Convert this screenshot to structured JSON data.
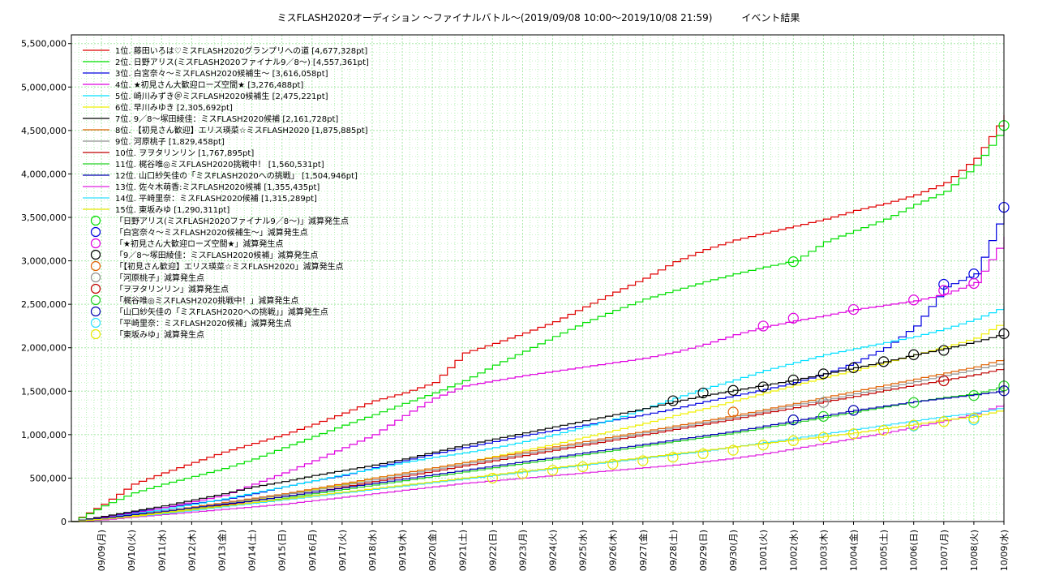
{
  "chart_data": {
    "type": "line",
    "title": "ミスFLASH2020オーディション 〜ファイナルバトル〜(2019/09/08 10:00〜2019/10/08 21:59)　　　イベント結果",
    "xlabel": "",
    "ylabel": "",
    "ylim": [
      0,
      5600000
    ],
    "yticks": [
      0,
      500000,
      1000000,
      1500000,
      2000000,
      2500000,
      3000000,
      3500000,
      4000000,
      4500000,
      5000000,
      5500000
    ],
    "ytick_labels": [
      "0",
      "500,000",
      "1,000,000",
      "1,500,000",
      "2,000,000",
      "2,500,000",
      "3,000,000",
      "3,500,000",
      "4,000,000",
      "4,500,000",
      "5,000,000",
      "5,500,000"
    ],
    "x": [
      "09/08",
      "09/09",
      "09/10",
      "09/11",
      "09/12",
      "09/13",
      "09/14",
      "09/15",
      "09/16",
      "09/17",
      "09/18",
      "09/19",
      "09/20",
      "09/21",
      "09/22",
      "09/23",
      "09/24",
      "09/25",
      "09/26",
      "09/27",
      "09/28",
      "09/29",
      "09/30",
      "10/01",
      "10/02",
      "10/03",
      "10/04",
      "10/05",
      "10/06",
      "10/07",
      "10/08",
      "10/09"
    ],
    "xtick_labels": [
      "09/09(月)",
      "09/10(火)",
      "09/11(水)",
      "09/12(木)",
      "09/13(金)",
      "09/14(土)",
      "09/15(日)",
      "09/16(月)",
      "09/17(火)",
      "09/18(水)",
      "09/19(木)",
      "09/20(金)",
      "09/21(土)",
      "09/22(日)",
      "09/23(月)",
      "09/24(火)",
      "09/25(水)",
      "09/26(木)",
      "09/27(金)",
      "09/28(土)",
      "09/29(日)",
      "09/30(月)",
      "10/01(火)",
      "10/02(水)",
      "10/03(木)",
      "10/04(金)",
      "10/05(土)",
      "10/06(日)",
      "10/07(月)",
      "10/08(火)",
      "10/09(水)"
    ],
    "grid": true,
    "legend_position": "top-left",
    "series": [
      {
        "name": "1位. 藤田いろは♡ミスFLASH2020グランプリへの道 [4,677,328pt]",
        "color": "#e00000",
        "values": [
          0,
          200000,
          430000,
          560000,
          680000,
          800000,
          900000,
          1000000,
          1120000,
          1250000,
          1390000,
          1480000,
          1600000,
          1940000,
          2050000,
          2170000,
          2300000,
          2470000,
          2640000,
          2800000,
          2990000,
          3130000,
          3240000,
          3320000,
          3400000,
          3480000,
          3580000,
          3660000,
          3760000,
          3900000,
          4180000,
          4677328
        ]
      },
      {
        "name": "2位. 日野アリス(ミスFLASH2020ファイナル9／8〜) [4,557,361pt]",
        "color": "#00e000",
        "values": [
          0,
          180000,
          330000,
          430000,
          520000,
          610000,
          720000,
          850000,
          980000,
          1110000,
          1230000,
          1360000,
          1480000,
          1620000,
          1800000,
          1960000,
          2130000,
          2290000,
          2430000,
          2560000,
          2660000,
          2760000,
          2850000,
          2930000,
          3000000,
          3220000,
          3350000,
          3480000,
          3650000,
          3800000,
          4100000,
          4557361
        ]
      },
      {
        "name": "3位. 白宮奈々〜ミスFLASH2020候補生〜 [3,616,058pt]",
        "color": "#0000e0",
        "values": [
          0,
          60000,
          110000,
          160000,
          210000,
          250000,
          320000,
          400000,
          470000,
          530000,
          620000,
          700000,
          780000,
          850000,
          920000,
          990000,
          1050000,
          1110000,
          1170000,
          1230000,
          1300000,
          1380000,
          1450000,
          1520000,
          1600000,
          1700000,
          1830000,
          2000000,
          2250000,
          2700000,
          2850000,
          3616058
        ]
      },
      {
        "name": "4位. ★初見さん大歓迎ローズ空間★ [3,276,488pt]",
        "color": "#e000e0",
        "values": [
          0,
          50000,
          100000,
          160000,
          230000,
          300000,
          430000,
          560000,
          700000,
          850000,
          1000000,
          1220000,
          1420000,
          1560000,
          1620000,
          1680000,
          1730000,
          1780000,
          1830000,
          1880000,
          1950000,
          2040000,
          2150000,
          2240000,
          2310000,
          2370000,
          2440000,
          2490000,
          2540000,
          2620000,
          2750000,
          3276488
        ]
      },
      {
        "name": "5位. 崎川みずき＠ミスFLASH2020候補生 [2,475,221pt]",
        "color": "#00e0ff",
        "values": [
          0,
          40000,
          90000,
          140000,
          200000,
          260000,
          330000,
          400000,
          470000,
          540000,
          610000,
          680000,
          740000,
          790000,
          850000,
          920000,
          1000000,
          1090000,
          1180000,
          1300000,
          1420000,
          1530000,
          1630000,
          1740000,
          1830000,
          1920000,
          1990000,
          2060000,
          2130000,
          2220000,
          2330000,
          2475221
        ]
      },
      {
        "name": "6位. 早川みゆき [2,305,692pt]",
        "color": "#f0f000",
        "values": [
          0,
          30000,
          70000,
          110000,
          150000,
          200000,
          250000,
          310000,
          370000,
          430000,
          500000,
          560000,
          620000,
          680000,
          750000,
          820000,
          890000,
          970000,
          1050000,
          1130000,
          1220000,
          1300000,
          1390000,
          1480000,
          1570000,
          1660000,
          1740000,
          1830000,
          1920000,
          2010000,
          2110000,
          2305692
        ]
      },
      {
        "name": "7位. 9／8〜塚田綾佳：ミスFLASH2020候補 [2,161,728pt]",
        "color": "#000000",
        "values": [
          0,
          60000,
          120000,
          180000,
          250000,
          320000,
          400000,
          460000,
          530000,
          590000,
          650000,
          720000,
          800000,
          880000,
          950000,
          1020000,
          1090000,
          1160000,
          1230000,
          1300000,
          1380000,
          1450000,
          1510000,
          1570000,
          1630000,
          1700000,
          1770000,
          1840000,
          1920000,
          1990000,
          2070000,
          2161728
        ]
      },
      {
        "name": "8位. 【初見さん歓迎】エリス瑛菜☆ミスFLASH2020 [1,875,885pt]",
        "color": "#e06000",
        "values": [
          0,
          40000,
          80000,
          120000,
          170000,
          220000,
          270000,
          320000,
          380000,
          440000,
          500000,
          560000,
          620000,
          680000,
          740000,
          800000,
          860000,
          920000,
          980000,
          1040000,
          1100000,
          1160000,
          1220000,
          1290000,
          1360000,
          1430000,
          1500000,
          1570000,
          1640000,
          1710000,
          1780000,
          1875885
        ]
      },
      {
        "name": "9位. 河原桃子 [1,829,458pt]",
        "color": "#909090",
        "values": [
          0,
          40000,
          80000,
          120000,
          160000,
          210000,
          260000,
          310000,
          360000,
          420000,
          480000,
          540000,
          600000,
          660000,
          720000,
          780000,
          840000,
          900000,
          960000,
          1020000,
          1080000,
          1140000,
          1200000,
          1270000,
          1340000,
          1400000,
          1470000,
          1540000,
          1610000,
          1680000,
          1750000,
          1829458
        ]
      },
      {
        "name": "10位. ヲヲタリンリン [1,767,895pt]",
        "color": "#c00000",
        "values": [
          0,
          30000,
          60000,
          100000,
          140000,
          190000,
          240000,
          290000,
          340000,
          400000,
          460000,
          520000,
          580000,
          640000,
          700000,
          760000,
          820000,
          880000,
          940000,
          1000000,
          1060000,
          1120000,
          1180000,
          1250000,
          1310000,
          1380000,
          1440000,
          1510000,
          1570000,
          1630000,
          1690000,
          1767895
        ]
      },
      {
        "name": "11位. 梶谷唯◎ミスFLASH2020挑戦中！ [1,560,531pt]",
        "color": "#20d020",
        "values": [
          0,
          30000,
          60000,
          100000,
          140000,
          180000,
          220000,
          270000,
          320000,
          370000,
          420000,
          470000,
          520000,
          570000,
          620000,
          670000,
          720000,
          770000,
          820000,
          870000,
          920000,
          970000,
          1020000,
          1080000,
          1140000,
          1200000,
          1260000,
          1320000,
          1380000,
          1430000,
          1470000,
          1560531
        ]
      },
      {
        "name": "12位. 山口紗矢佳の「ミスFLASH2020への挑戦」 [1,504,946pt]",
        "color": "#0000b0",
        "values": [
          0,
          40000,
          80000,
          120000,
          160000,
          200000,
          240000,
          290000,
          340000,
          390000,
          440000,
          490000,
          540000,
          590000,
          640000,
          690000,
          740000,
          790000,
          840000,
          890000,
          940000,
          990000,
          1040000,
          1100000,
          1160000,
          1220000,
          1280000,
          1330000,
          1380000,
          1420000,
          1460000,
          1504946
        ]
      },
      {
        "name": "13位. 佐々木萌香:ミスFLASH2020候補 [1,355,435pt]",
        "color": "#e020e0",
        "values": [
          0,
          20000,
          50000,
          80000,
          110000,
          140000,
          170000,
          200000,
          240000,
          280000,
          320000,
          360000,
          400000,
          440000,
          470000,
          500000,
          530000,
          560000,
          590000,
          620000,
          650000,
          690000,
          730000,
          780000,
          840000,
          900000,
          960000,
          1020000,
          1090000,
          1160000,
          1240000,
          1355435
        ]
      },
      {
        "name": "14位. 平崎里奈：ミスFLASH2020候補 [1,315,289pt]",
        "color": "#30e0ff",
        "values": [
          0,
          30000,
          60000,
          90000,
          130000,
          170000,
          210000,
          250000,
          290000,
          330000,
          370000,
          410000,
          450000,
          490000,
          530000,
          570000,
          610000,
          650000,
          690000,
          730000,
          770000,
          810000,
          860000,
          910000,
          960000,
          1010000,
          1060000,
          1110000,
          1160000,
          1210000,
          1250000,
          1315289
        ]
      },
      {
        "name": "15位. 東坂みゆ [1,290,311pt]",
        "color": "#e8e800",
        "values": [
          0,
          30000,
          60000,
          100000,
          140000,
          180000,
          220000,
          260000,
          300000,
          340000,
          380000,
          420000,
          460000,
          500000,
          540000,
          580000,
          620000,
          660000,
          700000,
          740000,
          780000,
          820000,
          860000,
          900000,
          940000,
          980000,
          1020000,
          1070000,
          1120000,
          1170000,
          1210000,
          1290311
        ]
      }
    ],
    "reduction_markers": [
      {
        "name": "「日野アリス(ミスFLASH2020ファイナル9／8〜)」減算発生点",
        "color": "#00e000",
        "points": [
          [
            24,
            2990000
          ],
          [
            31,
            4557361
          ]
        ]
      },
      {
        "name": "「白宮奈々〜ミスFLASH2020候補生〜」減算発生点",
        "color": "#0000e0",
        "points": [
          [
            29,
            2730000
          ],
          [
            30,
            2850000
          ],
          [
            31,
            3616058
          ]
        ]
      },
      {
        "name": "「★初見さん大歓迎ローズ空間★」減算発生点",
        "color": "#e000e0",
        "points": [
          [
            23,
            2250000
          ],
          [
            24,
            2340000
          ],
          [
            26,
            2440000
          ],
          [
            28,
            2550000
          ],
          [
            29,
            2660000
          ],
          [
            30,
            2740000
          ]
        ]
      },
      {
        "name": "「9／8〜塚田綾佳：ミスFLASH2020候補」減算発生点",
        "color": "#000000",
        "points": [
          [
            20,
            1390000
          ],
          [
            21,
            1480000
          ],
          [
            22,
            1510000
          ],
          [
            23,
            1550000
          ],
          [
            24,
            1630000
          ],
          [
            25,
            1700000
          ],
          [
            26,
            1770000
          ],
          [
            27,
            1840000
          ],
          [
            28,
            1920000
          ],
          [
            29,
            1970000
          ],
          [
            31,
            2161728
          ]
        ]
      },
      {
        "name": "「【初見さん歓迎】エリス瑛菜☆ミスFLASH2020」減算発生点",
        "color": "#e06000",
        "points": [
          [
            22,
            1260000
          ]
        ]
      },
      {
        "name": "「河原桃子」減算発生点",
        "color": "#909090",
        "points": [
          [
            25,
            1370000
          ]
        ]
      },
      {
        "name": "「ヲヲタリンリン」減算発生点",
        "color": "#c00000",
        "points": [
          [
            29,
            1620000
          ]
        ]
      },
      {
        "name": "「梶谷唯◎ミスFLASH2020挑戦中！」減算発生点",
        "color": "#20d020",
        "points": [
          [
            25,
            1210000
          ],
          [
            28,
            1370000
          ],
          [
            30,
            1450000
          ],
          [
            31,
            1560531
          ]
        ]
      },
      {
        "name": "「山口紗矢佳の「ミスFLASH2020への挑戦」」減算発生点",
        "color": "#0000b0",
        "points": [
          [
            24,
            1170000
          ],
          [
            26,
            1280000
          ],
          [
            31,
            1504946
          ]
        ]
      },
      {
        "name": "「平崎里奈：ミスFLASH2020候補」減算発生点",
        "color": "#30e0ff",
        "points": [
          [
            28,
            1100000
          ],
          [
            30,
            1170000
          ]
        ]
      },
      {
        "name": "「東坂みゆ」減算発生点",
        "color": "#e8e800",
        "points": [
          [
            14,
            500000
          ],
          [
            15,
            550000
          ],
          [
            16,
            590000
          ],
          [
            17,
            630000
          ],
          [
            18,
            660000
          ],
          [
            19,
            700000
          ],
          [
            20,
            740000
          ],
          [
            21,
            780000
          ],
          [
            22,
            820000
          ],
          [
            23,
            880000
          ],
          [
            24,
            930000
          ],
          [
            25,
            970000
          ],
          [
            26,
            1010000
          ],
          [
            27,
            1050000
          ],
          [
            28,
            1110000
          ],
          [
            29,
            1150000
          ],
          [
            30,
            1190000
          ]
        ]
      }
    ]
  }
}
